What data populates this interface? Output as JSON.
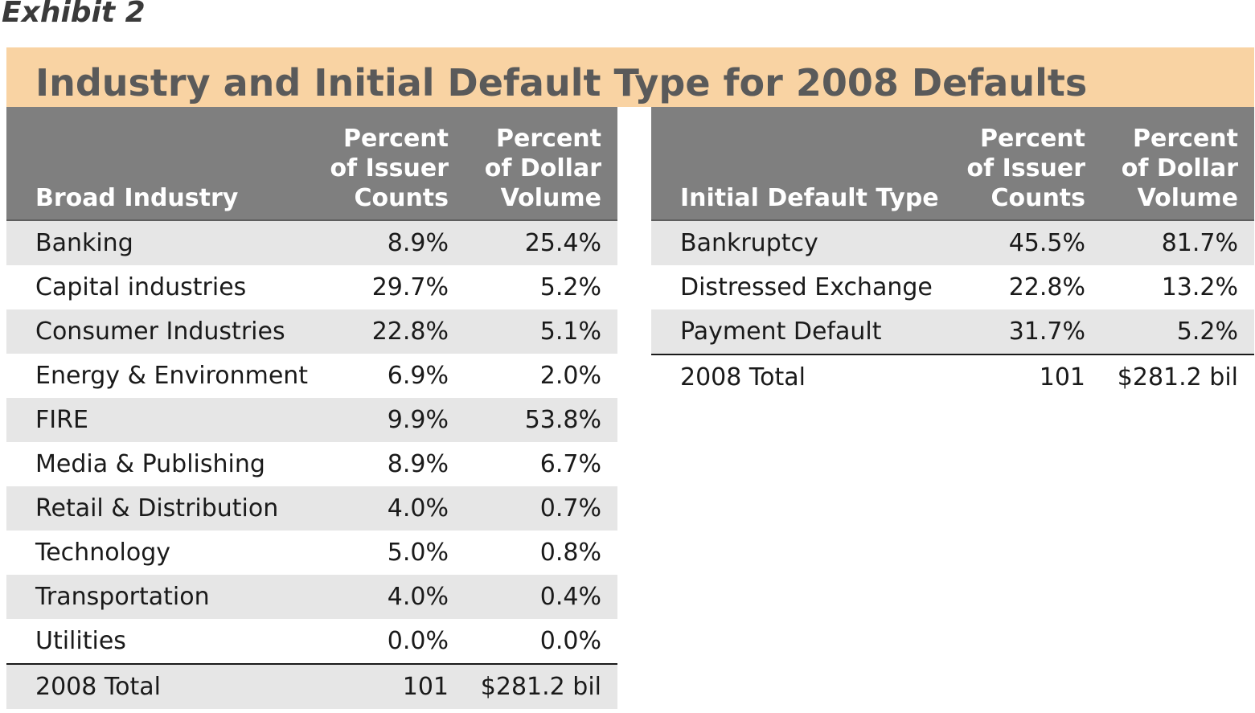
{
  "exhibit_label": "Exhibit 2",
  "title": "Industry and Initial Default Type for 2008 Defaults",
  "chart_data": [
    {
      "type": "table",
      "columns": [
        "Broad Industry",
        "Percent of Issuer Counts",
        "Percent of Dollar Volume"
      ],
      "column_lines": [
        [
          "Broad Industry"
        ],
        [
          "Percent",
          "of Issuer",
          "Counts"
        ],
        [
          "Percent",
          "of Dollar",
          "Volume"
        ]
      ],
      "rows": [
        [
          "Banking",
          "8.9%",
          "25.4%"
        ],
        [
          "Capital industries",
          "29.7%",
          "5.2%"
        ],
        [
          "Consumer Industries",
          "22.8%",
          "5.1%"
        ],
        [
          "Energy & Environment",
          "6.9%",
          "2.0%"
        ],
        [
          "FIRE",
          "9.9%",
          "53.8%"
        ],
        [
          "Media & Publishing",
          "8.9%",
          "6.7%"
        ],
        [
          "Retail & Distribution",
          "4.0%",
          "0.7%"
        ],
        [
          "Technology",
          "5.0%",
          "0.8%"
        ],
        [
          "Transportation",
          "4.0%",
          "0.4%"
        ],
        [
          "Utilities",
          "0.0%",
          "0.0%"
        ]
      ],
      "total": [
        "2008 Total",
        "101",
        "$281.2 bil"
      ]
    },
    {
      "type": "table",
      "columns": [
        "Initial Default Type",
        "Percent of Issuer Counts",
        "Percent of Dollar Volume"
      ],
      "column_lines": [
        [
          "Initial Default Type"
        ],
        [
          "Percent",
          "of Issuer",
          "Counts"
        ],
        [
          "Percent",
          "of Dollar",
          "Volume"
        ]
      ],
      "rows": [
        [
          "Bankruptcy",
          "45.5%",
          "81.7%"
        ],
        [
          "Distressed Exchange",
          "22.8%",
          "13.2%"
        ],
        [
          "Payment Default",
          "31.7%",
          "5.2%"
        ]
      ],
      "total": [
        "2008 Total",
        "101",
        "$281.2 bil"
      ]
    }
  ],
  "colors": {
    "title_band": "#f9d3a3",
    "header_bg": "#7f7f7f",
    "row_shade": "#e6e6e6"
  }
}
